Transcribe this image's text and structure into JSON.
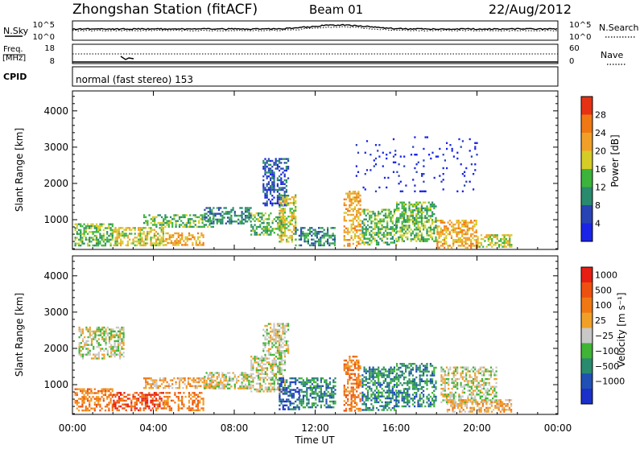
{
  "header": {
    "station": "Zhongshan Station (fitACF)",
    "beam": "Beam 01",
    "date": "22/Aug/2012"
  },
  "nsky_panel": {
    "left_label": "N.Sky",
    "left_ticks": [
      "10^5",
      "10^0"
    ],
    "right_ticks": [
      "10^5",
      "10^0"
    ],
    "right_label": "N.Search"
  },
  "freq_panel": {
    "left_label_top": "Freq.",
    "left_label_unit": "[MHz]",
    "left_ticks": [
      "18",
      "8"
    ],
    "right_ticks": [
      "60",
      "0"
    ],
    "right_label": "Nave"
  },
  "cpid_panel": {
    "left_label": "CPID",
    "text": "normal (fast stereo) 153"
  },
  "chart_data": [
    {
      "type": "heatmap",
      "name": "power",
      "ylabel": "Slant Range [km]",
      "yticks": [
        "1000",
        "2000",
        "3000",
        "4000"
      ],
      "ylim": [
        180,
        4550
      ],
      "xlim": [
        0,
        24
      ],
      "xticks": [
        "00:00",
        "04:00",
        "08:00",
        "12:00",
        "16:00",
        "20:00",
        "00:00"
      ],
      "colorbar": {
        "label": "Power [dB]",
        "ticks": [
          "4",
          "8",
          "12",
          "16",
          "20",
          "24",
          "28"
        ],
        "colors": [
          "#1a24e6",
          "#2844b4",
          "#2a8a6e",
          "#3cb43c",
          "#d6cc28",
          "#f0a028",
          "#f07814",
          "#e63214"
        ]
      },
      "echo_regions": [
        {
          "t0": 0.1,
          "t1": 2.0,
          "r0": 280,
          "r1": 900,
          "level": 3
        },
        {
          "t0": 2.0,
          "t1": 4.5,
          "r0": 300,
          "r1": 800,
          "level": 4
        },
        {
          "t0": 4.5,
          "t1": 6.5,
          "r0": 280,
          "r1": 650,
          "level": 5
        },
        {
          "t0": 3.5,
          "t1": 7.0,
          "r0": 800,
          "r1": 1150,
          "level": 3
        },
        {
          "t0": 6.5,
          "t1": 8.8,
          "r0": 900,
          "r1": 1350,
          "level": 2
        },
        {
          "t0": 8.8,
          "t1": 10.5,
          "r0": 600,
          "r1": 1200,
          "level": 3
        },
        {
          "t0": 9.4,
          "t1": 10.7,
          "r0": 1400,
          "r1": 2700,
          "level": 1
        },
        {
          "t0": 10.2,
          "t1": 11.0,
          "r0": 400,
          "r1": 1700,
          "level": 4
        },
        {
          "t0": 11.0,
          "t1": 13.0,
          "r0": 300,
          "r1": 800,
          "level": 2
        },
        {
          "t0": 13.4,
          "t1": 14.2,
          "r0": 300,
          "r1": 1800,
          "level": 5
        },
        {
          "t0": 14.3,
          "t1": 16.0,
          "r0": 300,
          "r1": 1300,
          "level": 3
        },
        {
          "t0": 16.0,
          "t1": 18.0,
          "r0": 400,
          "r1": 1500,
          "level": 3
        },
        {
          "t0": 18.0,
          "t1": 20.0,
          "r0": 250,
          "r1": 1000,
          "level": 5
        },
        {
          "t0": 20.0,
          "t1": 21.7,
          "r0": 250,
          "r1": 600,
          "level": 4
        },
        {
          "t0": 14.0,
          "t1": 20.0,
          "r0": 1800,
          "r1": 3300,
          "level": 0
        }
      ]
    },
    {
      "type": "heatmap",
      "name": "velocity",
      "ylabel": "Slant Range [km]",
      "yticks": [
        "1000",
        "2000",
        "3000",
        "4000"
      ],
      "ylim": [
        180,
        4550
      ],
      "xlim": [
        0,
        24
      ],
      "xticks": [
        "00:00",
        "04:00",
        "08:00",
        "12:00",
        "16:00",
        "20:00",
        "00:00"
      ],
      "xlabel": "Time UT",
      "colorbar": {
        "label": "Velocity [m s⁻¹]",
        "ticks": [
          "1000",
          "500",
          "100",
          "25",
          "−25",
          "−100",
          "−500",
          "−1000"
        ],
        "colors": [
          "#1a30c8",
          "#2050b4",
          "#2a8a6e",
          "#40b434",
          "#c8c8c8",
          "#f0a028",
          "#f07814",
          "#ee5010",
          "#e61e14"
        ]
      },
      "echo_regions": [
        {
          "t0": 0.1,
          "t1": 2.0,
          "r0": 300,
          "r1": 900,
          "level": 6
        },
        {
          "t0": 2.0,
          "t1": 4.5,
          "r0": 300,
          "r1": 800,
          "level": 7
        },
        {
          "t0": 4.5,
          "t1": 6.5,
          "r0": 280,
          "r1": 800,
          "level": 6
        },
        {
          "t0": 3.5,
          "t1": 7.0,
          "r0": 900,
          "r1": 1200,
          "level": 5
        },
        {
          "t0": 6.5,
          "t1": 8.8,
          "r0": 900,
          "r1": 1350,
          "level": 4
        },
        {
          "t0": 8.8,
          "t1": 10.5,
          "r0": 800,
          "r1": 1800,
          "level": 4
        },
        {
          "t0": 9.4,
          "t1": 10.7,
          "r0": 1800,
          "r1": 2700,
          "level": 4
        },
        {
          "t0": 10.2,
          "t1": 11.2,
          "r0": 300,
          "r1": 1200,
          "level": 1
        },
        {
          "t0": 11.2,
          "t1": 13.0,
          "r0": 400,
          "r1": 1200,
          "level": 2
        },
        {
          "t0": 13.4,
          "t1": 14.2,
          "r0": 300,
          "r1": 1800,
          "level": 6
        },
        {
          "t0": 14.3,
          "t1": 16.0,
          "r0": 300,
          "r1": 1500,
          "level": 2
        },
        {
          "t0": 16.0,
          "t1": 18.0,
          "r0": 400,
          "r1": 1600,
          "level": 2
        },
        {
          "t0": 18.2,
          "t1": 21.0,
          "r0": 500,
          "r1": 1500,
          "level": 4
        },
        {
          "t0": 18.5,
          "t1": 21.7,
          "r0": 250,
          "r1": 600,
          "level": 5
        },
        {
          "t0": 0.3,
          "t1": 2.5,
          "r0": 1700,
          "r1": 2600,
          "level": 4
        }
      ]
    }
  ]
}
